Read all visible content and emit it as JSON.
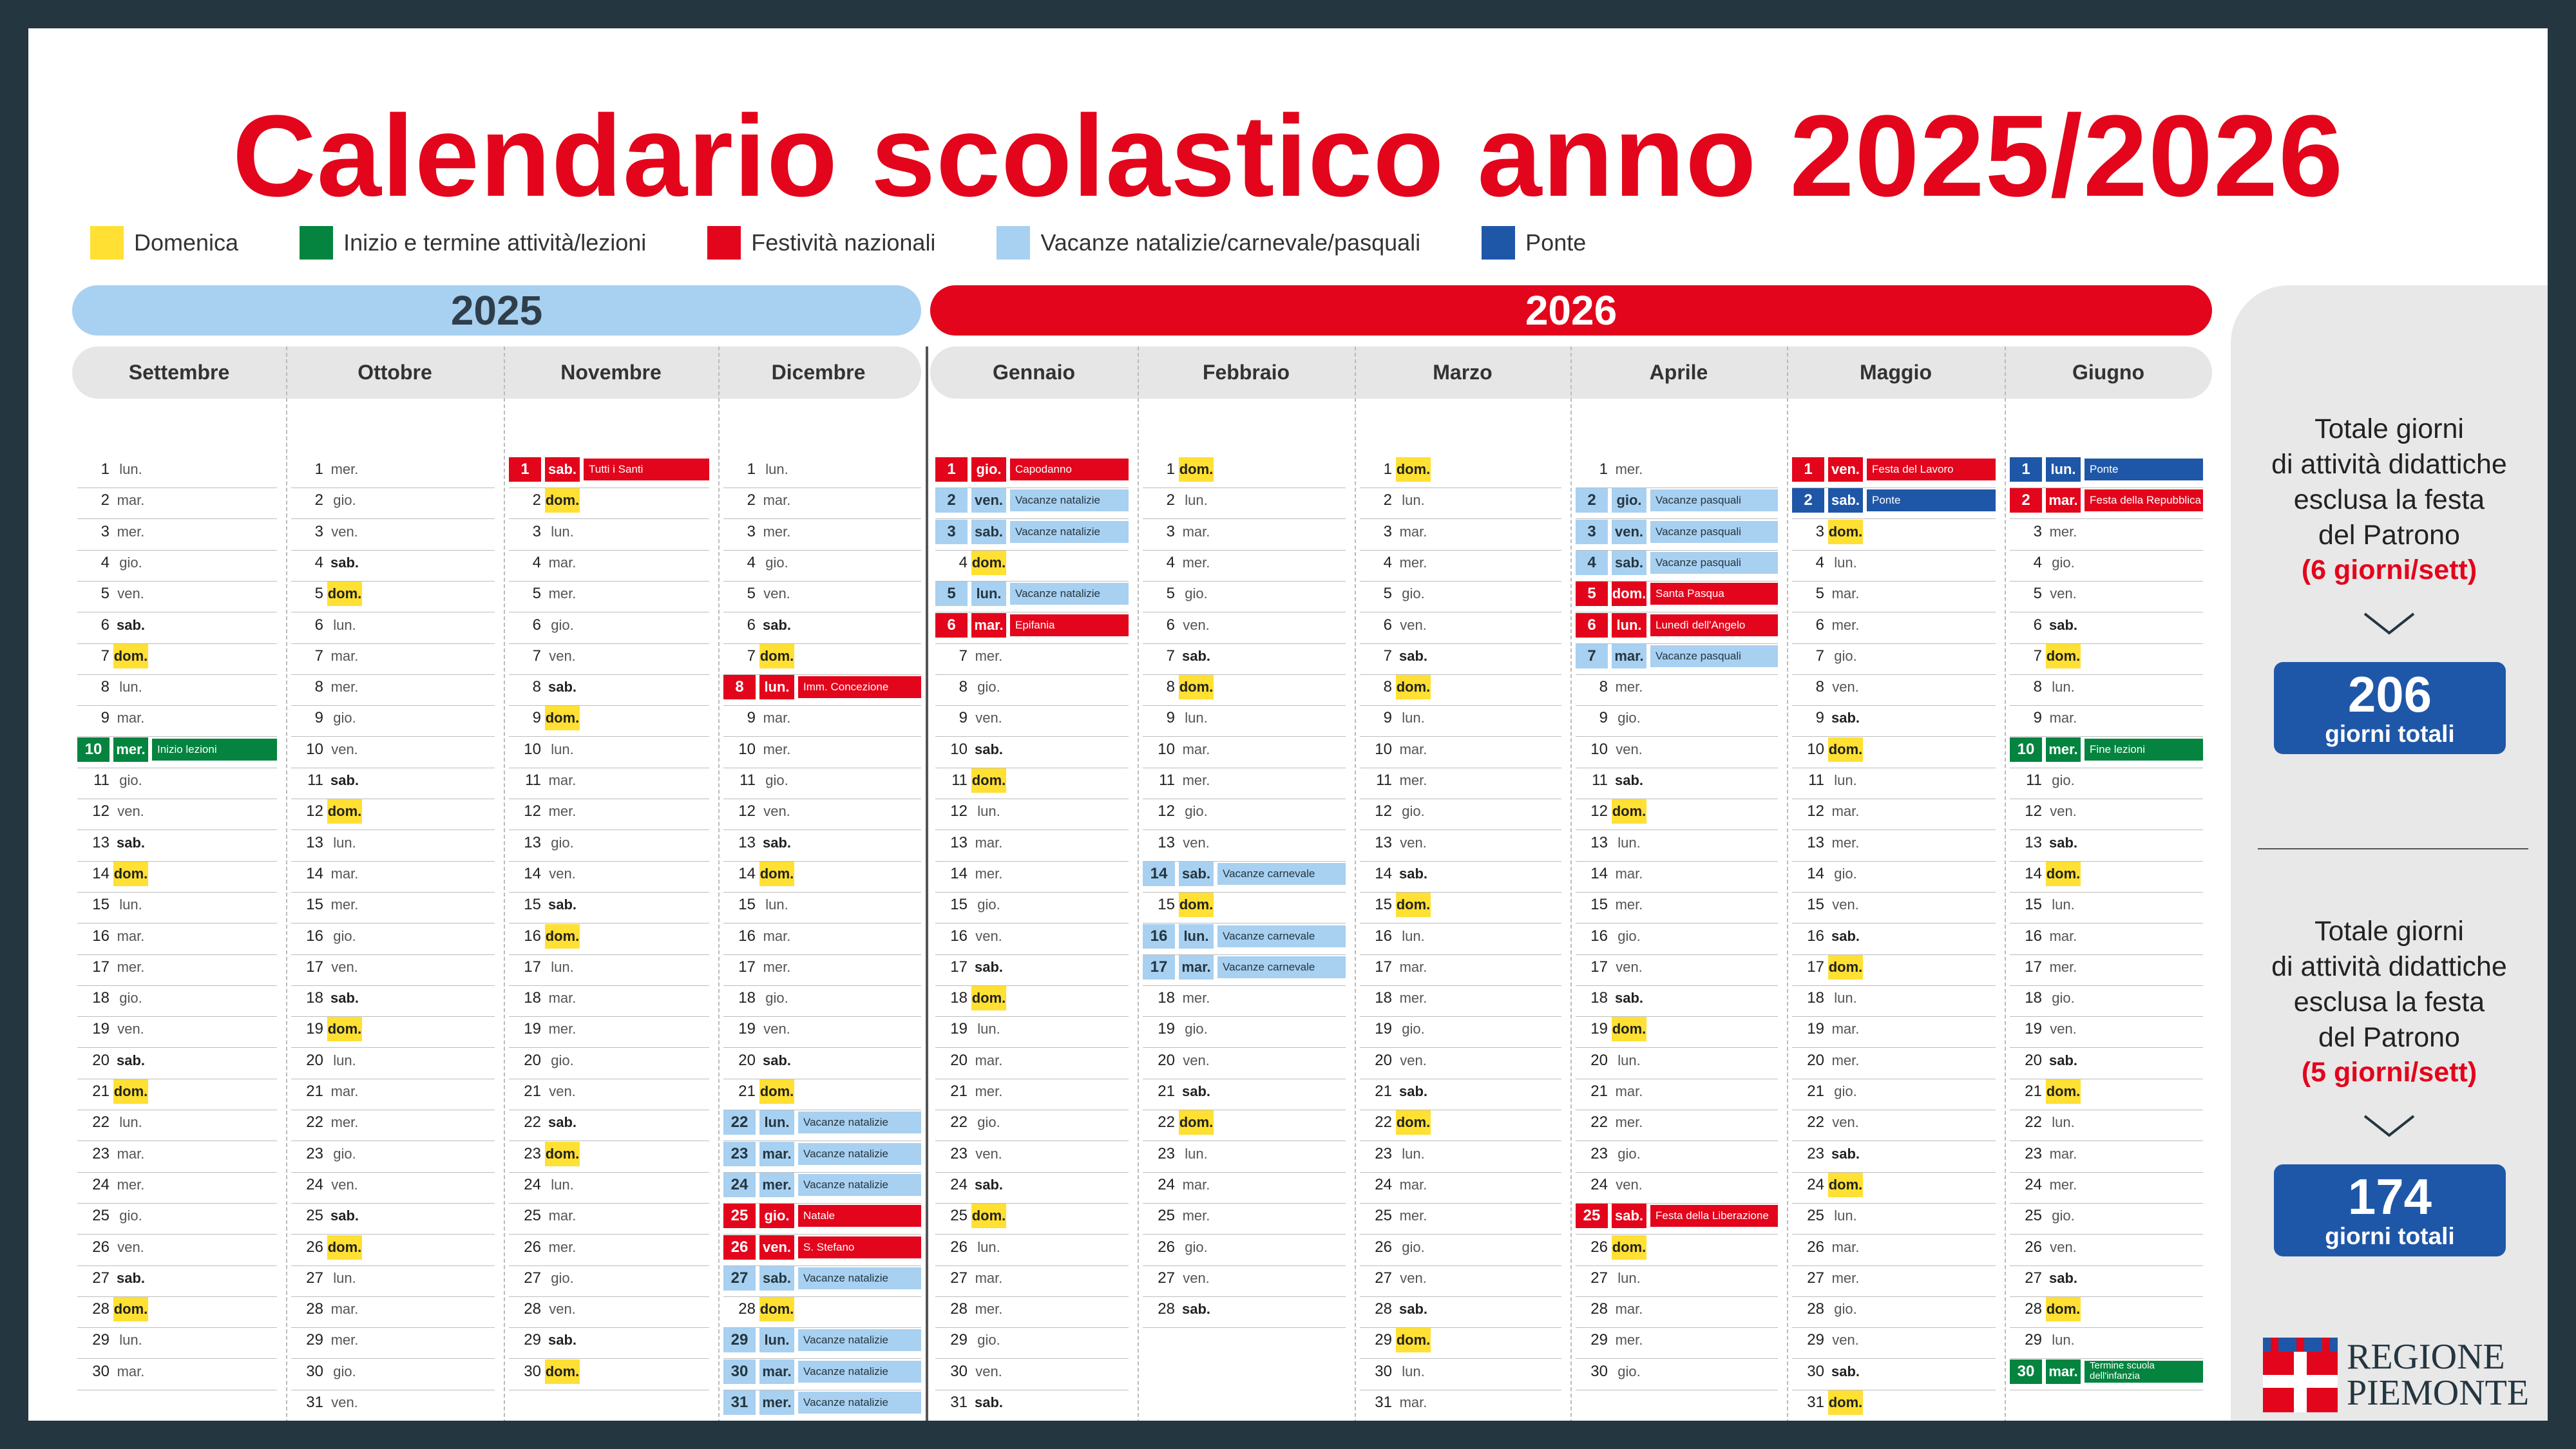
{
  "title": "Calendario scolastico anno 2025/2026",
  "colors": {
    "title_red": "#e3051b",
    "sunday": "#ffe033",
    "start_end": "#04843f",
    "national_holiday": "#e3051b",
    "vacation": "#a8d0f1",
    "bridge": "#1f57a8",
    "frame": "#243640"
  },
  "legend": [
    {
      "label": "Domenica",
      "color": "#ffe033"
    },
    {
      "label": "Inizio e termine attività/lezioni",
      "color": "#04843f"
    },
    {
      "label": "Festività nazionali",
      "color": "#e3051b"
    },
    {
      "label": "Vacanze natalizie/carnevale/pasquali",
      "color": "#a8d0f1"
    },
    {
      "label": "Ponte",
      "color": "#1f57a8"
    }
  ],
  "years": [
    "2025",
    "2026"
  ],
  "months": [
    {
      "name": "Settembre",
      "year": "2025",
      "days": 30,
      "startIndex": 0,
      "special": {
        "10": {
          "t": "gre",
          "note": "Inizio lezioni"
        }
      }
    },
    {
      "name": "Ottobre",
      "year": "2025",
      "days": 31,
      "startIndex": 2,
      "special": {}
    },
    {
      "name": "Novembre",
      "year": "2025",
      "days": 30,
      "startIndex": 5,
      "special": {
        "1": {
          "t": "red",
          "note": "Tutti i Santi"
        }
      }
    },
    {
      "name": "Dicembre",
      "year": "2025",
      "days": 31,
      "startIndex": 0,
      "special": {
        "8": {
          "t": "red",
          "note": "Imm. Concezione"
        },
        "22": {
          "t": "lbl",
          "note": "Vacanze natalizie"
        },
        "23": {
          "t": "lbl",
          "note": "Vacanze natalizie"
        },
        "24": {
          "t": "lbl",
          "note": "Vacanze natalizie"
        },
        "25": {
          "t": "red",
          "note": "Natale"
        },
        "26": {
          "t": "red",
          "note": "S. Stefano"
        },
        "27": {
          "t": "lbl",
          "note": "Vacanze natalizie"
        },
        "29": {
          "t": "lbl",
          "note": "Vacanze natalizie"
        },
        "30": {
          "t": "lbl",
          "note": "Vacanze natalizie"
        },
        "31": {
          "t": "lbl",
          "note": "Vacanze natalizie"
        }
      }
    },
    {
      "name": "Gennaio",
      "year": "2026",
      "days": 31,
      "startIndex": 3,
      "special": {
        "1": {
          "t": "red",
          "note": "Capodanno"
        },
        "2": {
          "t": "lbl",
          "note": "Vacanze natalizie"
        },
        "3": {
          "t": "lbl",
          "note": "Vacanze natalizie"
        },
        "5": {
          "t": "lbl",
          "note": "Vacanze natalizie"
        },
        "6": {
          "t": "red",
          "note": "Epifania"
        }
      }
    },
    {
      "name": "Febbraio",
      "year": "2026",
      "days": 28,
      "startIndex": 6,
      "special": {
        "14": {
          "t": "lbl",
          "note": "Vacanze carnevale"
        },
        "16": {
          "t": "lbl",
          "note": "Vacanze carnevale"
        },
        "17": {
          "t": "lbl",
          "note": "Vacanze carnevale"
        }
      }
    },
    {
      "name": "Marzo",
      "year": "2026",
      "days": 31,
      "startIndex": 6,
      "special": {}
    },
    {
      "name": "Aprile",
      "year": "2026",
      "days": 30,
      "startIndex": 2,
      "special": {
        "2": {
          "t": "lbl",
          "note": "Vacanze pasquali"
        },
        "3": {
          "t": "lbl",
          "note": "Vacanze pasquali"
        },
        "4": {
          "t": "lbl",
          "note": "Vacanze pasquali"
        },
        "5": {
          "t": "red",
          "note": "Santa Pasqua"
        },
        "6": {
          "t": "red",
          "note": "Lunedì dell'Angelo"
        },
        "7": {
          "t": "lbl",
          "note": "Vacanze pasquali"
        },
        "25": {
          "t": "red",
          "note": "Festa della Liberazione"
        }
      }
    },
    {
      "name": "Maggio",
      "year": "2026",
      "days": 31,
      "startIndex": 4,
      "special": {
        "1": {
          "t": "red",
          "note": "Festa del Lavoro"
        },
        "2": {
          "t": "blu",
          "note": "Ponte"
        }
      }
    },
    {
      "name": "Giugno",
      "year": "2026",
      "days": 30,
      "startIndex": 0,
      "special": {
        "1": {
          "t": "blu",
          "note": "Ponte"
        },
        "2": {
          "t": "red",
          "note": "Festa della Repubblica"
        },
        "10": {
          "t": "gre",
          "note": "Fine lezioni"
        },
        "30": {
          "t": "gre",
          "note": "Termine scuola dell'infanzia"
        }
      }
    }
  ],
  "weekdays": [
    "lun.",
    "mar.",
    "mer.",
    "gio.",
    "ven.",
    "sab.",
    "dom."
  ],
  "totals": [
    {
      "lines": [
        "Totale giorni",
        "di attività didattiche",
        "esclusa la festa",
        "del Patrono"
      ],
      "week": "(6 giorni/sett)",
      "value": "206",
      "label": "giorni totali"
    },
    {
      "lines": [
        "Totale giorni",
        "di attività didattiche",
        "esclusa la festa",
        "del Patrono"
      ],
      "week": "(5 giorni/sett)",
      "value": "174",
      "label": "giorni totali"
    }
  ],
  "logo": {
    "line1": "REGIONE",
    "line2": "PIEMONTE"
  }
}
